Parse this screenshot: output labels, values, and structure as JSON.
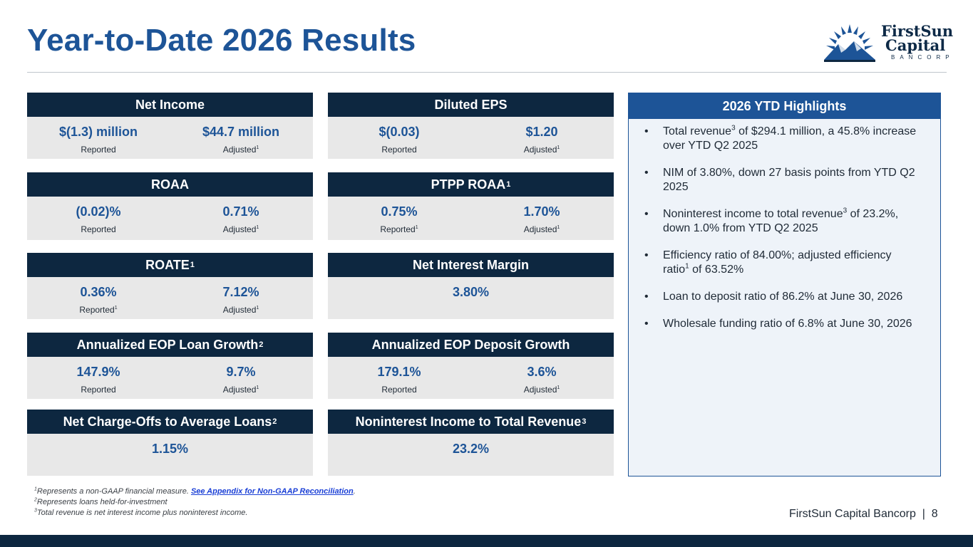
{
  "slide": {
    "title": "Year-to-Date 2026 Results",
    "logo": {
      "line1": "FirstSun",
      "line2": "Capital",
      "line3": "BANCORP"
    }
  },
  "cards": {
    "net_income": {
      "title": "Net Income",
      "left_value": "$(1.3) million",
      "left_label": "Reported",
      "right_value": "$44.7 million",
      "right_label": "Adjusted"
    },
    "diluted_eps": {
      "title": "Diluted EPS",
      "left_value": "$(0.03)",
      "left_label": "Reported",
      "right_value": "$1.20",
      "right_label": "Adjusted"
    },
    "roaa": {
      "title": "ROAA",
      "left_value": "(0.02)%",
      "left_label": "Reported",
      "right_value": "0.71%",
      "right_label": "Adjusted"
    },
    "ptpp_roaa": {
      "title": "PTPP ROAA",
      "left_value": "0.75%",
      "left_label": "Reported",
      "right_value": "1.70%",
      "right_label": "Adjusted"
    },
    "roate": {
      "title": "ROATE",
      "left_value": "0.36%",
      "left_label": "Reported",
      "right_value": "7.12%",
      "right_label": "Adjusted"
    },
    "nim": {
      "title": "Net Interest Margin",
      "value": "3.80%"
    },
    "loan_growth": {
      "title": "Annualized EOP Loan Growth",
      "left_value": "147.9%",
      "left_label": "Reported",
      "right_value": "9.7%",
      "right_label": "Adjusted"
    },
    "deposit_growth": {
      "title": "Annualized EOP Deposit Growth",
      "left_value": "179.1%",
      "left_label": "Reported",
      "right_value": "3.6%",
      "right_label": "Adjusted"
    },
    "charge_offs": {
      "title": "Net Charge-Offs to Average Loans",
      "value": "1.15%"
    },
    "nonint_income": {
      "title": "Noninterest Income to Total Revenue",
      "value": "23.2%"
    }
  },
  "highlights": {
    "title": "2026 YTD Highlights",
    "b1a": "Total revenue",
    "b1b": " of $294.1 million, a 45.8% increase over YTD Q2 2025",
    "b2": "NIM of 3.80%, down 27 basis points from YTD Q2 2025",
    "b3a": "Noninterest income to total revenue",
    "b3b": " of 23.2%, down 1.0% from YTD Q2 2025",
    "b4a": "Efficiency ratio of 84.00%; adjusted efficiency ratio",
    "b4b": " of 63.52%",
    "b5": "Loan to deposit ratio of 86.2% at June 30, 2026",
    "b6": "Wholesale funding ratio of 6.8% at June 30, 2026"
  },
  "footnotes": {
    "f1": "Represents a non-GAAP financial measure. ",
    "f1_link": "See Appendix for Non-GAAP Reconciliation",
    "f2": "Represents loans held-for-investment",
    "f3": "Total revenue is net interest income plus noninterest income."
  },
  "footer": {
    "brand": "FirstSun Capital Bancorp  |  8"
  },
  "markers": {
    "one": "1",
    "two": "2",
    "three": "3",
    "period": "."
  }
}
